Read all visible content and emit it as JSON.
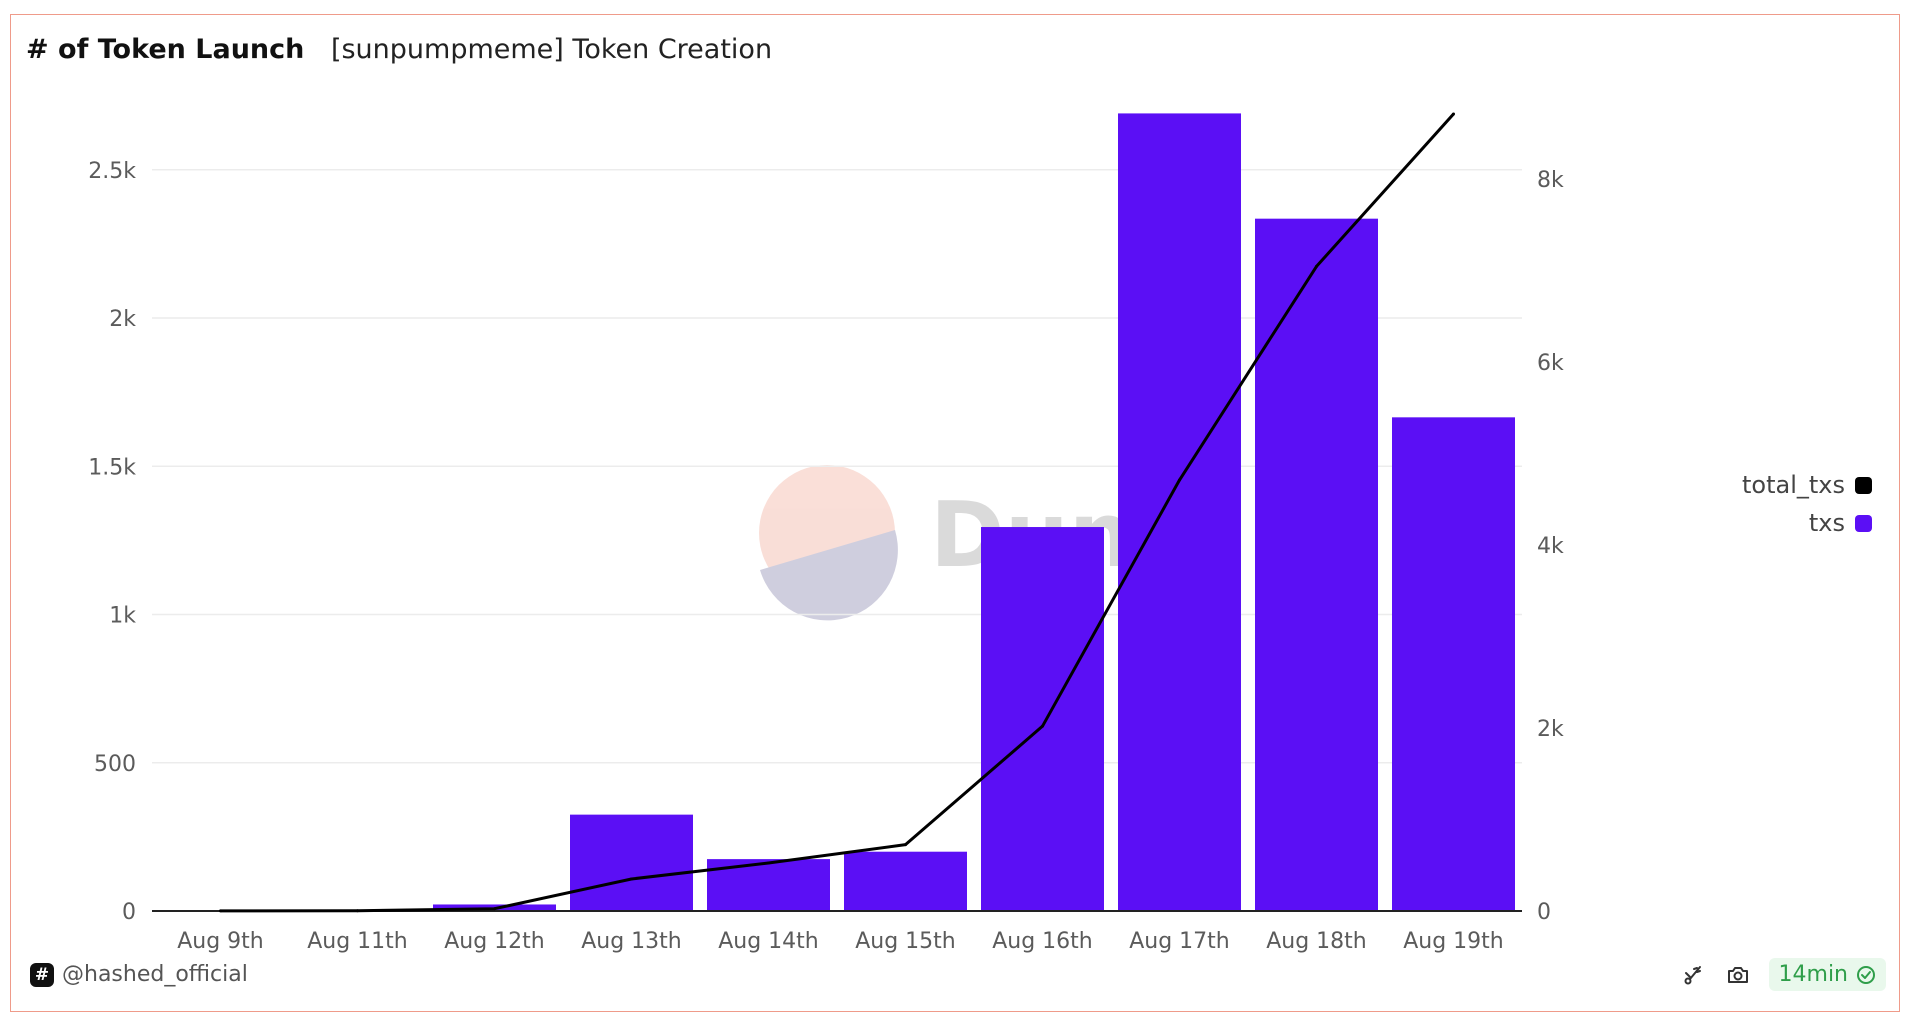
{
  "header": {
    "title": "# of Token Launch",
    "subtitle": "[sunpumpmeme] Token Creation"
  },
  "footer": {
    "author": "@hashed_official",
    "freshness": "14min",
    "author_icon": "hash-logo-icon",
    "icons": [
      "fork-icon",
      "camera-icon",
      "check-circle-icon"
    ]
  },
  "watermark": {
    "text": "Dune"
  },
  "colors": {
    "bar": "#5b0ff5",
    "line": "#000000",
    "frame": "#ef9b8a",
    "fresh": "#2f9e4a"
  },
  "chart_data": {
    "type": "bar",
    "categories": [
      "Aug 9th",
      "Aug 11th",
      "Aug 12th",
      "Aug 13th",
      "Aug 14th",
      "Aug 15th",
      "Aug 16th",
      "Aug 17th",
      "Aug 18th",
      "Aug 19th"
    ],
    "series": [
      {
        "name": "txs",
        "type": "bar",
        "axis": "left",
        "color": "#5b0ff5",
        "values": [
          1,
          2,
          22,
          325,
          175,
          200,
          1295,
          2690,
          2335,
          1665
        ]
      },
      {
        "name": "total_txs",
        "type": "line",
        "axis": "right",
        "color": "#000000",
        "values": [
          1,
          3,
          25,
          350,
          525,
          725,
          2020,
          4710,
          7045,
          8710
        ]
      }
    ],
    "y_left": {
      "ticks": [
        0,
        500,
        1000,
        1500,
        2000,
        2500
      ],
      "tick_labels": [
        "0",
        "500",
        "1k",
        "1.5k",
        "2k",
        "2.5k"
      ],
      "range": [
        0,
        2500
      ]
    },
    "y_right": {
      "ticks": [
        0,
        2000,
        4000,
        6000,
        8000
      ],
      "tick_labels": [
        "0",
        "2k",
        "4k",
        "6k",
        "8k"
      ],
      "range": [
        0,
        8000
      ]
    },
    "grid": true,
    "legend": {
      "position": "right",
      "order": [
        "total_txs",
        "txs"
      ]
    }
  }
}
